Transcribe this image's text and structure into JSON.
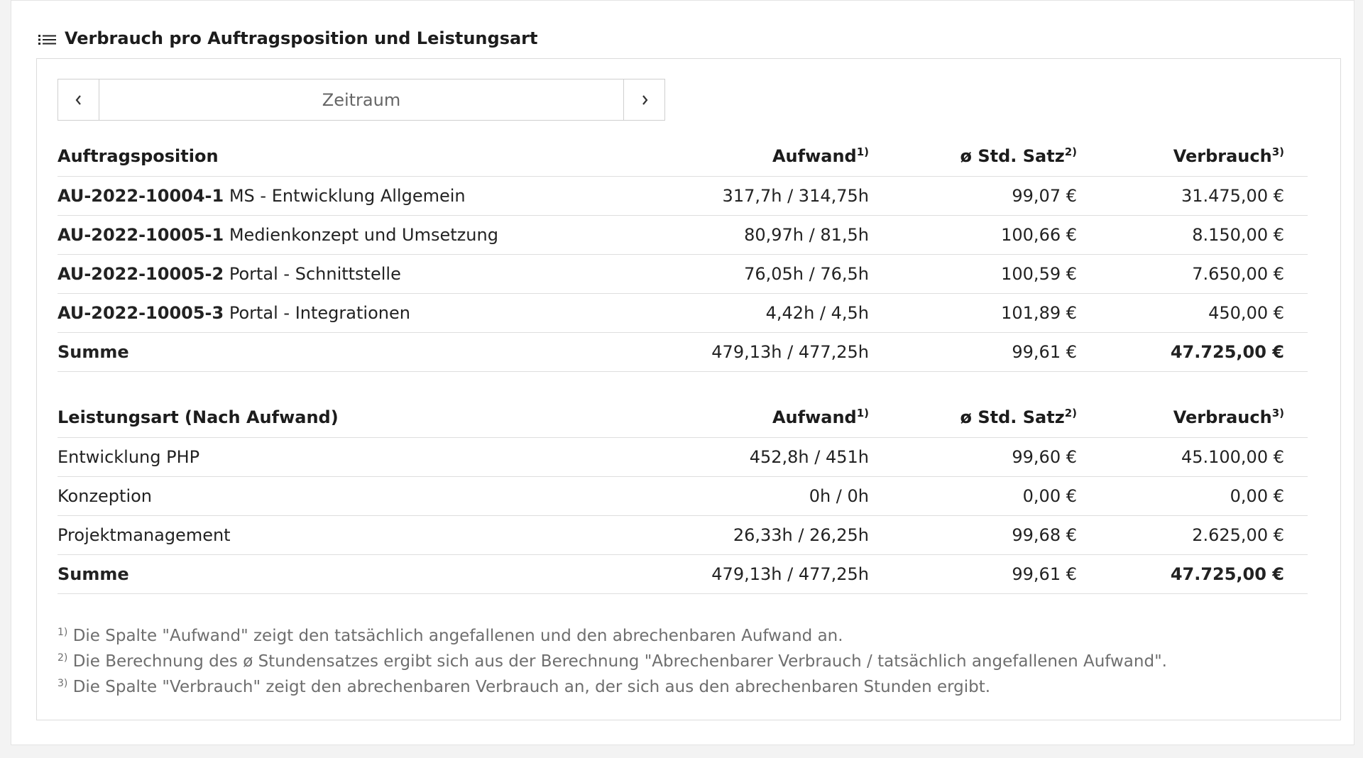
{
  "panel": {
    "title": "Verbrauch pro Auftragsposition und Leistungsart",
    "icon": "list-icon"
  },
  "pager": {
    "prev_icon": "chevron-left-icon",
    "next_icon": "chevron-right-icon",
    "label": "Zeitraum"
  },
  "table1": {
    "headers": {
      "col1": "Auftragsposition",
      "col2": "Aufwand",
      "col2_sup": "1)",
      "col3": "ø Std. Satz",
      "col3_sup": "2)",
      "col4": "Verbrauch",
      "col4_sup": "3)"
    },
    "rows": [
      {
        "code": "AU-2022-10004-1",
        "name": "MS - Entwicklung Allgemein",
        "aufwand": "317,7h / 314,75h",
        "satz": "99,07 €",
        "verbrauch": "31.475,00 €"
      },
      {
        "code": "AU-2022-10005-1",
        "name": "Medienkonzept und Umsetzung",
        "aufwand": "80,97h / 81,5h",
        "satz": "100,66 €",
        "verbrauch": "8.150,00 €"
      },
      {
        "code": "AU-2022-10005-2",
        "name": "Portal - Schnittstelle",
        "aufwand": "76,05h / 76,5h",
        "satz": "100,59 €",
        "verbrauch": "7.650,00 €"
      },
      {
        "code": "AU-2022-10005-3",
        "name": "Portal - Integrationen",
        "aufwand": "4,42h / 4,5h",
        "satz": "101,89 €",
        "verbrauch": "450,00 €"
      }
    ],
    "sum": {
      "label": "Summe",
      "aufwand": "479,13h / 477,25h",
      "satz": "99,61 €",
      "verbrauch": "47.725,00 €"
    }
  },
  "table2": {
    "headers": {
      "col1": "Leistungsart (Nach Aufwand)",
      "col2": "Aufwand",
      "col2_sup": "1)",
      "col3": "ø Std. Satz",
      "col3_sup": "2)",
      "col4": "Verbrauch",
      "col4_sup": "3)"
    },
    "rows": [
      {
        "name": "Entwicklung PHP",
        "aufwand": "452,8h / 451h",
        "satz": "99,60 €",
        "verbrauch": "45.100,00 €"
      },
      {
        "name": "Konzeption",
        "aufwand": "0h / 0h",
        "satz": "0,00 €",
        "verbrauch": "0,00 €"
      },
      {
        "name": "Projektmanagement",
        "aufwand": "26,33h / 26,25h",
        "satz": "99,68 €",
        "verbrauch": "2.625,00 €"
      }
    ],
    "sum": {
      "label": "Summe",
      "aufwand": "479,13h / 477,25h",
      "satz": "99,61 €",
      "verbrauch": "47.725,00 €"
    }
  },
  "footnotes": [
    {
      "mark": "1)",
      "text": "Die Spalte \"Aufwand\" zeigt den tatsächlich angefallenen und den abrechenbaren Aufwand an."
    },
    {
      "mark": "2)",
      "text": "Die Berechnung des ø Stundensatzes ergibt sich aus der Berechnung \"Abrechenbarer Verbrauch / tatsächlich angefallenen Aufwand\"."
    },
    {
      "mark": "3)",
      "text": "Die Spalte \"Verbrauch\" zeigt den abrechenbaren Verbrauch an, der sich aus den abrechenbaren Stunden ergibt."
    }
  ]
}
